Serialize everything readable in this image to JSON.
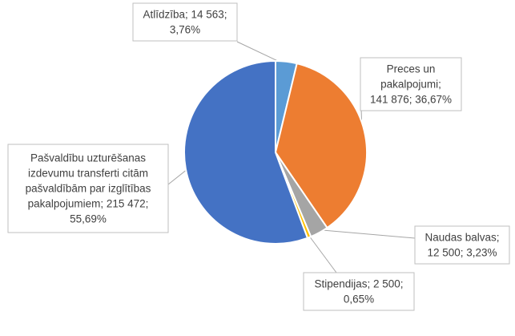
{
  "chart_data": {
    "type": "pie",
    "title": "",
    "slices": [
      {
        "label": "Atlīdzība",
        "value": 14563,
        "percent": 3.76,
        "color": "#5B9BD5",
        "label_lines": [
          "Atlīdzība; 14 563;",
          "3,76%"
        ]
      },
      {
        "label": "Preces un pakalpojumi",
        "value": 141876,
        "percent": 36.67,
        "color": "#ED7D31",
        "label_lines": [
          "Preces un",
          "pakalpojumi;",
          "141 876; 36,67%"
        ]
      },
      {
        "label": "Naudas balvas",
        "value": 12500,
        "percent": 3.23,
        "color": "#A5A5A5",
        "label_lines": [
          "Naudas balvas;",
          "12 500; 3,23%"
        ]
      },
      {
        "label": "Stipendijas",
        "value": 2500,
        "percent": 0.65,
        "color": "#FFC000",
        "label_lines": [
          "Stipendijas; 2 500;",
          "0,65%"
        ]
      },
      {
        "label": "Pašvaldību uzturēšanas izdevumu transferti citām pašvaldībām par izglītības pakalpojumiem",
        "value": 215472,
        "percent": 55.69,
        "color": "#4472C4",
        "label_lines": [
          "Pašvaldību uzturēšanas",
          "izdevumu transferti citām",
          "pašvaldībām par izglītības",
          "pakalpojumiem; 215 472;",
          "55,69%"
        ]
      }
    ],
    "legend": "none",
    "data_labels": "callouts"
  }
}
